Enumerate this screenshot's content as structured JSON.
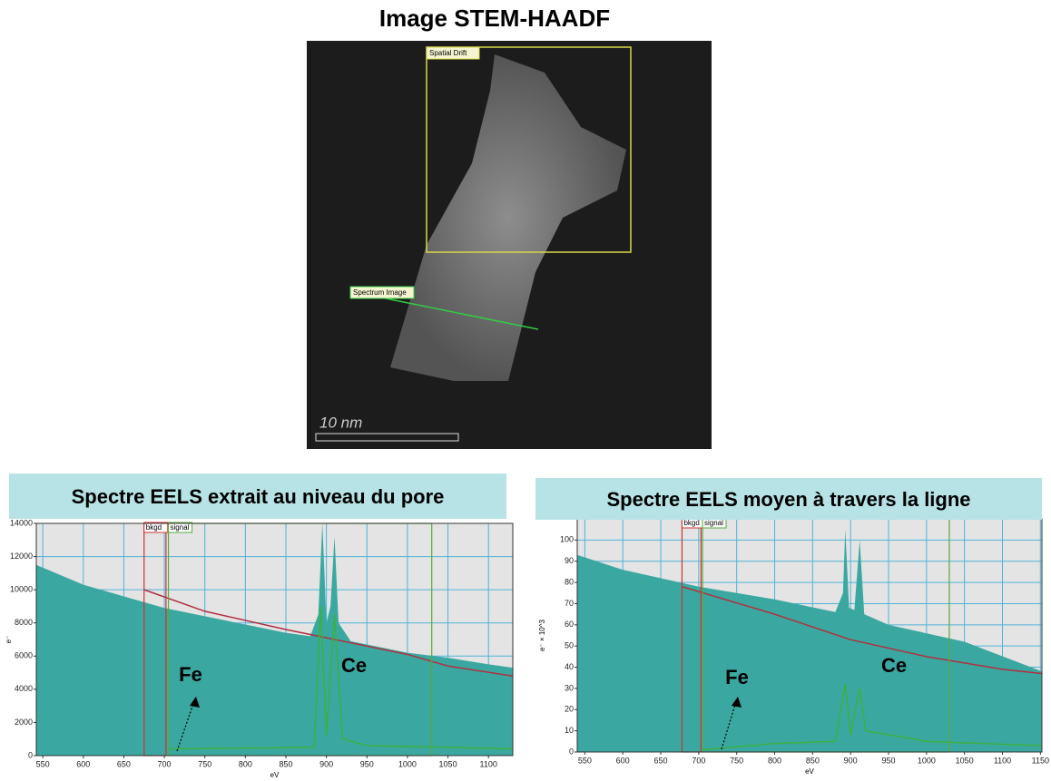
{
  "header": {
    "title": "Image STEM-HAADF"
  },
  "image": {
    "labels": {
      "spatial_drift": "Spatial Drift",
      "spectrum_image": "Spectrum Image",
      "scale_bar": "10 nm"
    }
  },
  "chart_data": [
    {
      "type": "area",
      "title": "Spectre EELS extrait au niveau du pore",
      "x_label": "eV",
      "y_label": "e⁻",
      "xlim": [
        542,
        1130
      ],
      "ylim": [
        0,
        14000
      ],
      "xticks": [
        550,
        600,
        650,
        700,
        750,
        800,
        850,
        900,
        950,
        1000,
        1050,
        1100
      ],
      "yticks": [
        0,
        2000,
        4000,
        6000,
        8000,
        10000,
        12000,
        14000
      ],
      "grid": true,
      "windows": [
        {
          "label": "bkgd",
          "range": [
            675,
            702
          ],
          "color": "#cc3333"
        },
        {
          "label": "signal",
          "range": [
            705,
            1030
          ],
          "color": "#5aa83a"
        }
      ],
      "annotations": [
        "Fe",
        "Ce"
      ],
      "series": [
        {
          "type": "area",
          "color": "#3aa8a0",
          "x": [
            542,
            600,
            650,
            700,
            750,
            800,
            850,
            880,
            890,
            895,
            900,
            905,
            910,
            915,
            930,
            1000,
            1050,
            1100,
            1130
          ],
          "values": [
            11500,
            10300,
            9600,
            8900,
            8400,
            7900,
            7400,
            7200,
            8500,
            14000,
            8000,
            9000,
            13200,
            8000,
            6900,
            6200,
            5900,
            5500,
            5300
          ]
        },
        {
          "type": "line",
          "color": "#b03040",
          "x": [
            675,
            750,
            850,
            900,
            1000,
            1050,
            1130
          ],
          "values": [
            10000,
            8700,
            7600,
            7100,
            6100,
            5400,
            4800
          ]
        },
        {
          "type": "line",
          "color": "#3cb043",
          "x": [
            705,
            800,
            885,
            893,
            900,
            910,
            920,
            950,
            1050,
            1130
          ],
          "values": [
            400,
            450,
            500,
            9000,
            1200,
            8500,
            1000,
            600,
            500,
            400
          ]
        }
      ]
    },
    {
      "type": "area",
      "title": "Spectre EELS moyen à travers la ligne",
      "x_label": "eV",
      "y_label": "e⁻ × 10^3",
      "xlim": [
        540,
        1152
      ],
      "ylim": [
        0,
        110
      ],
      "xticks": [
        550,
        600,
        650,
        700,
        750,
        800,
        850,
        900,
        950,
        1000,
        1050,
        1100,
        1150
      ],
      "yticks": [
        0,
        10,
        20,
        30,
        40,
        50,
        60,
        70,
        80,
        90,
        100
      ],
      "grid": true,
      "windows": [
        {
          "label": "bkgd",
          "range": [
            678,
            703
          ],
          "color": "#cc3333"
        },
        {
          "label": "signal",
          "range": [
            705,
            1030
          ],
          "color": "#5aa83a"
        }
      ],
      "annotations": [
        "Fe",
        "Ce"
      ],
      "series": [
        {
          "type": "area",
          "color": "#3aa8a0",
          "x": [
            540,
            600,
            700,
            800,
            880,
            890,
            893,
            898,
            905,
            912,
            918,
            950,
            1050,
            1152
          ],
          "values": [
            93,
            86,
            78,
            72,
            66,
            75,
            105,
            68,
            67,
            100,
            65,
            60,
            52,
            38
          ]
        },
        {
          "type": "line",
          "color": "#b03040",
          "x": [
            678,
            800,
            900,
            1000,
            1100,
            1152
          ],
          "values": [
            78,
            65,
            53,
            45,
            39,
            37
          ]
        },
        {
          "type": "line",
          "color": "#3cb043",
          "x": [
            705,
            800,
            880,
            893,
            900,
            912,
            920,
            1000,
            1152
          ],
          "values": [
            1,
            4,
            5,
            32,
            8,
            30,
            10,
            5,
            3
          ]
        }
      ]
    }
  ]
}
